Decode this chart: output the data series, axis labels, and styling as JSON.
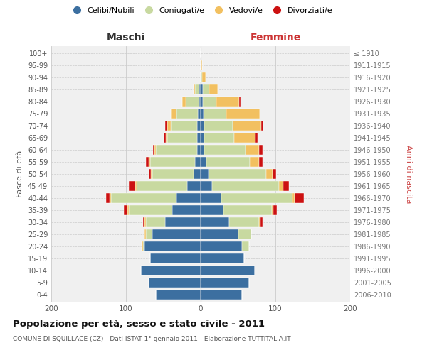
{
  "age_groups": [
    "0-4",
    "5-9",
    "10-14",
    "15-19",
    "20-24",
    "25-29",
    "30-34",
    "35-39",
    "40-44",
    "45-49",
    "50-54",
    "55-59",
    "60-64",
    "65-69",
    "70-74",
    "75-79",
    "80-84",
    "85-89",
    "90-94",
    "95-99",
    "100+"
  ],
  "birth_years": [
    "2006-2010",
    "2001-2005",
    "1996-2000",
    "1991-1995",
    "1986-1990",
    "1981-1985",
    "1976-1980",
    "1971-1975",
    "1966-1970",
    "1961-1965",
    "1956-1960",
    "1951-1955",
    "1946-1950",
    "1941-1945",
    "1936-1940",
    "1931-1935",
    "1926-1930",
    "1921-1925",
    "1916-1920",
    "1911-1915",
    "≤ 1910"
  ],
  "color_single": "#3c6fa0",
  "color_married": "#c8d9a0",
  "color_widowed": "#f2c060",
  "color_divorced": "#cc1111",
  "legend_labels": [
    "Celibi/Nubili",
    "Coniugati/e",
    "Vedovi/e",
    "Divorziati/e"
  ],
  "males_single": [
    60,
    70,
    80,
    68,
    75,
    65,
    48,
    38,
    32,
    18,
    10,
    8,
    5,
    5,
    5,
    4,
    2,
    2,
    0,
    0,
    0
  ],
  "males_married": [
    0,
    0,
    0,
    0,
    2,
    8,
    25,
    58,
    88,
    68,
    55,
    60,
    55,
    40,
    35,
    28,
    18,
    6,
    0,
    0,
    0
  ],
  "males_widowed": [
    0,
    0,
    0,
    0,
    2,
    2,
    2,
    2,
    2,
    2,
    2,
    2,
    2,
    2,
    5,
    8,
    5,
    2,
    0,
    0,
    0
  ],
  "males_divorced": [
    0,
    0,
    0,
    0,
    0,
    0,
    2,
    5,
    5,
    8,
    3,
    3,
    2,
    3,
    3,
    0,
    0,
    0,
    0,
    0,
    0
  ],
  "females_single": [
    55,
    65,
    72,
    58,
    55,
    50,
    38,
    30,
    28,
    15,
    10,
    8,
    5,
    5,
    5,
    4,
    3,
    3,
    0,
    0,
    0
  ],
  "females_married": [
    0,
    0,
    0,
    0,
    10,
    18,
    40,
    65,
    95,
    90,
    78,
    58,
    55,
    40,
    38,
    30,
    18,
    8,
    2,
    0,
    0
  ],
  "females_widowed": [
    0,
    0,
    0,
    0,
    0,
    0,
    2,
    2,
    3,
    5,
    8,
    12,
    18,
    28,
    38,
    45,
    30,
    12,
    5,
    2,
    0
  ],
  "females_divorced": [
    0,
    0,
    0,
    0,
    0,
    0,
    3,
    5,
    12,
    8,
    5,
    5,
    5,
    3,
    3,
    0,
    2,
    0,
    0,
    0,
    0
  ],
  "title": "Popolazione per età, sesso e stato civile - 2011",
  "subtitle": "COMUNE DI SQUILLACE (CZ) - Dati ISTAT 1° gennaio 2011 - Elaborazione TUTTITALIA.IT",
  "label_maschi": "Maschi",
  "label_femmine": "Femmine",
  "label_fasce": "Fasce di età",
  "label_anni": "Anni di nascita",
  "xlim": 200,
  "bg_plot": "#f0f0f0",
  "bg_fig": "#ffffff"
}
